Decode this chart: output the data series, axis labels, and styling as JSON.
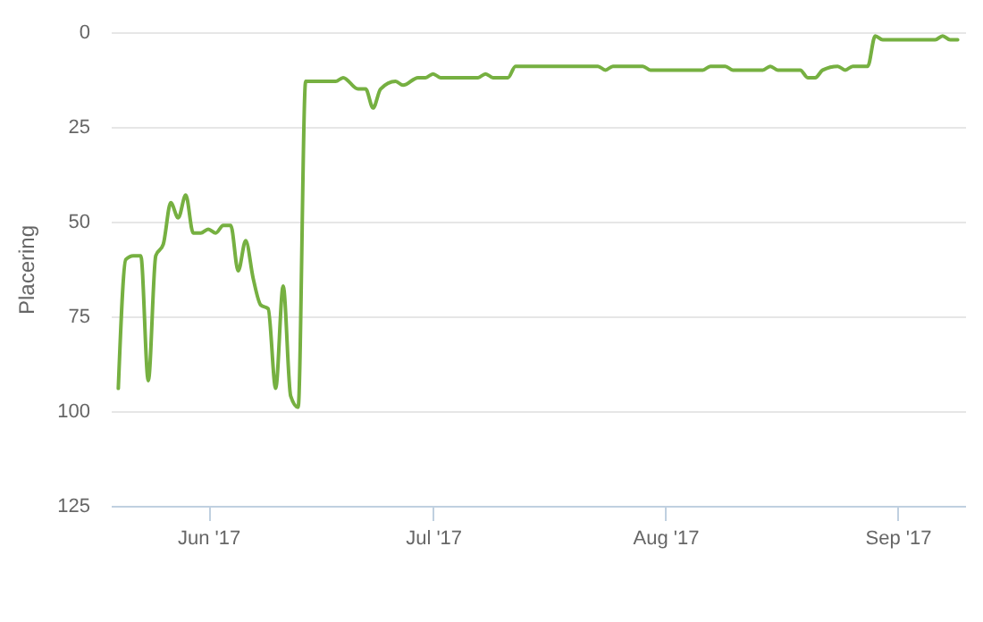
{
  "chart_data": {
    "type": "line",
    "ylabel": "Placering",
    "x": [
      "2017-05-20",
      "2017-05-21",
      "2017-05-22",
      "2017-05-23",
      "2017-05-24",
      "2017-05-25",
      "2017-05-26",
      "2017-05-27",
      "2017-05-28",
      "2017-05-29",
      "2017-05-30",
      "2017-05-31",
      "2017-06-01",
      "2017-06-02",
      "2017-06-03",
      "2017-06-04",
      "2017-06-05",
      "2017-06-06",
      "2017-06-07",
      "2017-06-08",
      "2017-06-09",
      "2017-06-10",
      "2017-06-11",
      "2017-06-12",
      "2017-06-13",
      "2017-06-14",
      "2017-06-18",
      "2017-06-19",
      "2017-06-21",
      "2017-06-22",
      "2017-06-23",
      "2017-06-24",
      "2017-06-26",
      "2017-06-27",
      "2017-06-29",
      "2017-06-30",
      "2017-07-01",
      "2017-07-02",
      "2017-07-07",
      "2017-07-08",
      "2017-07-09",
      "2017-07-11",
      "2017-07-12",
      "2017-07-23",
      "2017-07-24",
      "2017-07-25",
      "2017-07-29",
      "2017-07-30",
      "2017-08-06",
      "2017-08-07",
      "2017-08-09",
      "2017-08-10",
      "2017-08-14",
      "2017-08-15",
      "2017-08-16",
      "2017-08-19",
      "2017-08-20",
      "2017-08-21",
      "2017-08-22",
      "2017-08-24",
      "2017-08-25",
      "2017-08-26",
      "2017-08-28",
      "2017-08-29",
      "2017-08-30",
      "2017-09-06",
      "2017-09-07",
      "2017-09-08",
      "2017-09-09"
    ],
    "series": [
      {
        "color": "#76b041",
        "values": [
          94,
          60,
          59,
          59,
          92,
          59,
          56,
          45,
          49,
          43,
          53,
          53,
          52,
          53,
          51,
          51,
          63,
          55,
          65,
          72,
          73,
          94,
          67,
          96,
          99,
          13,
          13,
          12,
          15,
          15,
          20,
          15,
          13,
          14,
          12,
          12,
          11,
          12,
          12,
          11,
          12,
          12,
          9,
          9,
          10,
          9,
          9,
          10,
          10,
          9,
          9,
          10,
          10,
          9,
          10,
          10,
          12,
          12,
          10,
          9,
          10,
          9,
          9,
          1,
          2,
          2,
          1,
          2,
          2
        ]
      }
    ],
    "xlim": [
      "2017-05-19",
      "2017-09-10"
    ],
    "xticks": [
      {
        "value": "2017-06-01",
        "label": "Jun '17"
      },
      {
        "value": "2017-07-01",
        "label": "Jul '17"
      },
      {
        "value": "2017-08-01",
        "label": "Aug '17"
      },
      {
        "value": "2017-09-01",
        "label": "Sep '17"
      }
    ],
    "ylim": [
      125,
      0
    ],
    "yticks": [
      0,
      25,
      50,
      75,
      100,
      125
    ],
    "grid": "y",
    "marker": "none",
    "line_style": "solid"
  }
}
